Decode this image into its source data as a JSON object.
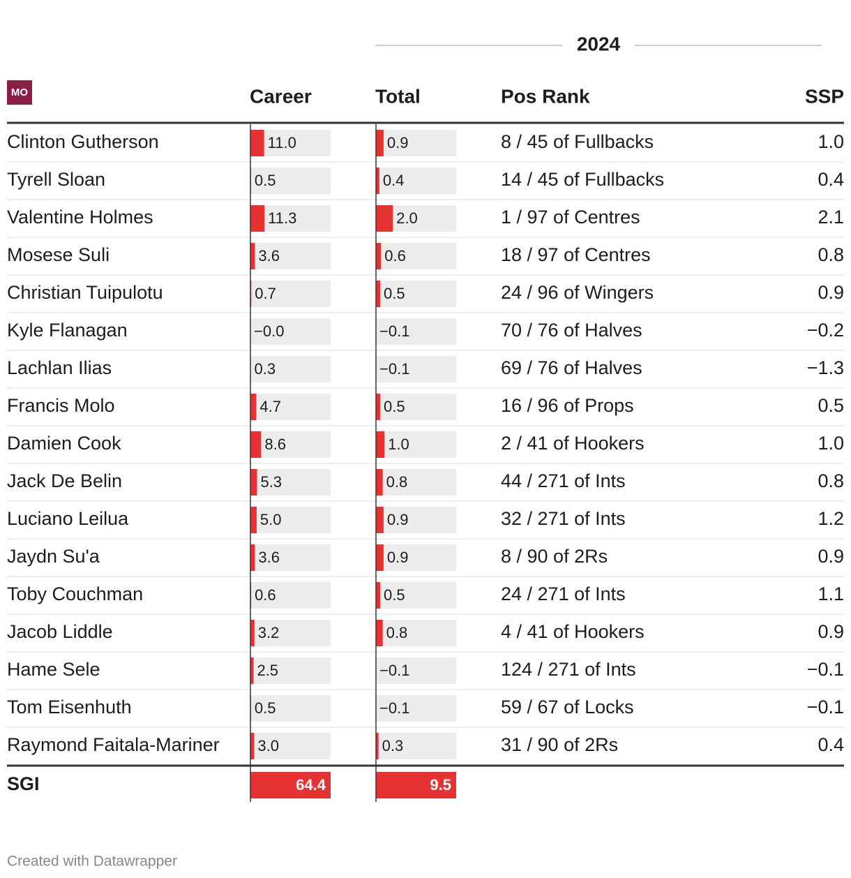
{
  "table": {
    "title": "2024",
    "logo": "MO",
    "columns": [
      "Career",
      "Total",
      "Pos Rank",
      "SSP"
    ],
    "rows": [
      {
        "name": "Clinton Gutherson",
        "career": 11.0,
        "career_label": "11.0",
        "total": 0.9,
        "pos_rank": "8 / 45 of Fullbacks",
        "ssp": "1.0"
      },
      {
        "name": "Tyrell Sloan",
        "career": 0.5,
        "total": 0.4,
        "pos_rank": "14 / 45 of Fullbacks",
        "ssp": "0.4"
      },
      {
        "name": "Valentine Holmes",
        "career": 11.3,
        "total": 2.0,
        "total_label": "2.0",
        "pos_rank": "1 / 97 of Centres",
        "ssp": "2.1"
      },
      {
        "name": "Mosese Suli",
        "career": 3.6,
        "total": 0.6,
        "pos_rank": "18 / 97 of Centres",
        "ssp": "0.8"
      },
      {
        "name": "Christian Tuipulotu",
        "career": 0.7,
        "total": 0.5,
        "pos_rank": "24 / 96 of Wingers",
        "ssp": "0.9"
      },
      {
        "name": "Kyle Flanagan",
        "career": -0.0,
        "career_label": "−0.0",
        "total": -0.1,
        "total_label": "−0.1",
        "pos_rank": "70 / 76 of Halves",
        "ssp": "−0.2"
      },
      {
        "name": "Lachlan Ilias",
        "career": 0.3,
        "total": -0.1,
        "total_label": "−0.1",
        "pos_rank": "69 / 76 of Halves",
        "ssp": "−1.3"
      },
      {
        "name": "Francis Molo",
        "career": 4.7,
        "total": 0.5,
        "pos_rank": "16 / 96 of Props",
        "ssp": "0.5"
      },
      {
        "name": "Damien Cook",
        "career": 8.6,
        "total": 1.0,
        "total_label": "1.0",
        "pos_rank": "2 / 41 of Hookers",
        "ssp": "1.0"
      },
      {
        "name": "Jack De Belin",
        "career": 5.3,
        "total": 0.8,
        "pos_rank": "44 / 271 of Ints",
        "ssp": "0.8"
      },
      {
        "name": "Luciano Leilua",
        "career": 5.0,
        "career_label": "5.0",
        "total": 0.9,
        "pos_rank": "32 / 271 of Ints",
        "ssp": "1.2"
      },
      {
        "name": "Jaydn Su'a",
        "career": 3.6,
        "total": 0.9,
        "pos_rank": "8 / 90 of 2Rs",
        "ssp": "0.9"
      },
      {
        "name": "Toby Couchman",
        "career": 0.6,
        "total": 0.5,
        "pos_rank": "24 / 271 of Ints",
        "ssp": "1.1"
      },
      {
        "name": "Jacob Liddle",
        "career": 3.2,
        "total": 0.8,
        "pos_rank": "4 / 41 of Hookers",
        "ssp": "0.9"
      },
      {
        "name": "Hame Sele",
        "career": 2.5,
        "total": -0.1,
        "total_label": "−0.1",
        "pos_rank": "124 / 271 of Ints",
        "ssp": "−0.1"
      },
      {
        "name": "Tom Eisenhuth",
        "career": 0.5,
        "total": -0.1,
        "total_label": "−0.1",
        "pos_rank": "59 / 67 of Locks",
        "ssp": "−0.1"
      },
      {
        "name": "Raymond Faitala-Mariner",
        "career": 3.0,
        "career_label": "3.0",
        "total": 0.3,
        "pos_rank": "31 / 90 of 2Rs",
        "ssp": "0.4"
      }
    ],
    "total_row": {
      "name": "SGI",
      "career": 64.4,
      "total": 9.5
    },
    "credit": "Created with Datawrapper"
  }
}
